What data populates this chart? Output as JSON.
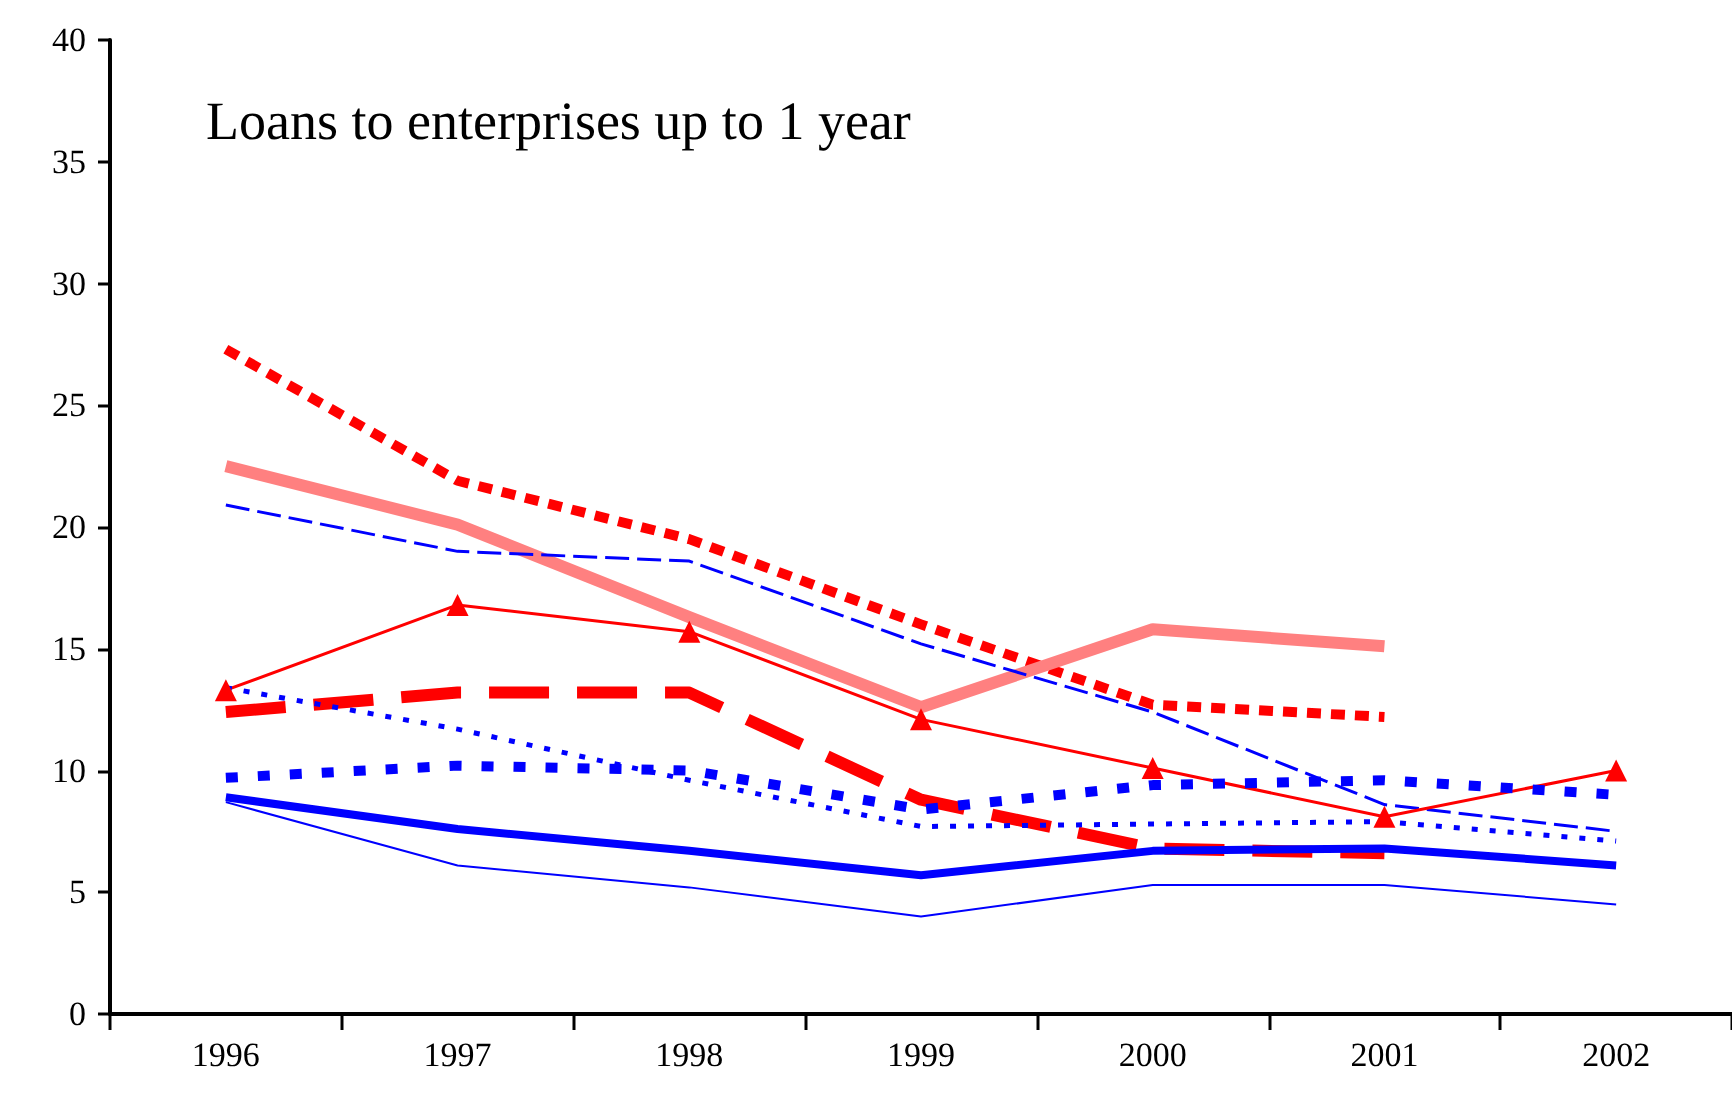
{
  "chart_data": {
    "type": "line",
    "title": "Loans to enterprises up to 1 year",
    "categories": [
      "1996",
      "1997",
      "1998",
      "1999",
      "2000",
      "2001",
      "2002"
    ],
    "ylim": [
      0,
      40
    ],
    "yticks": [
      0,
      5,
      10,
      15,
      20,
      25,
      30,
      35,
      40
    ],
    "grid": false,
    "series": [
      {
        "color": "#ff0000",
        "line_style": "dashed",
        "marker": "none",
        "values": [
          27.3,
          21.9,
          19.5,
          16.0,
          12.7,
          12.2,
          null
        ]
      },
      {
        "color": "#ff8080",
        "line_style": "solid",
        "marker": "none",
        "values": [
          22.5,
          20.1,
          16.3,
          12.6,
          15.8,
          15.1,
          null
        ]
      },
      {
        "color": "#0000ff",
        "line_style": "dashed",
        "marker": "none",
        "values": [
          20.9,
          19.0,
          18.6,
          15.2,
          12.4,
          8.6,
          7.5
        ]
      },
      {
        "color": "#ff0000",
        "line_style": "solid",
        "marker": "triangle",
        "values": [
          13.3,
          16.8,
          15.7,
          12.1,
          10.1,
          8.1,
          10.0
        ]
      },
      {
        "color": "#ff0000",
        "line_style": "dashed",
        "marker": "none",
        "values": [
          12.4,
          13.2,
          13.2,
          8.8,
          6.8,
          6.6,
          null
        ]
      },
      {
        "color": "#0000ff",
        "line_style": "dotted",
        "marker": "none",
        "values": [
          13.4,
          11.7,
          9.6,
          7.7,
          7.8,
          7.9,
          7.1
        ]
      },
      {
        "color": "#0000ff",
        "line_style": "dotted",
        "marker": "none",
        "values": [
          9.7,
          10.2,
          10.0,
          8.4,
          9.4,
          9.6,
          9.0
        ]
      },
      {
        "color": "#0000ff",
        "line_style": "solid",
        "marker": "none",
        "values": [
          8.9,
          7.6,
          6.7,
          5.7,
          6.7,
          6.8,
          6.1
        ]
      },
      {
        "color": "#0000ff",
        "line_style": "solid",
        "marker": "none",
        "values": [
          8.7,
          6.1,
          5.2,
          4.0,
          5.3,
          5.3,
          4.5
        ]
      }
    ]
  }
}
